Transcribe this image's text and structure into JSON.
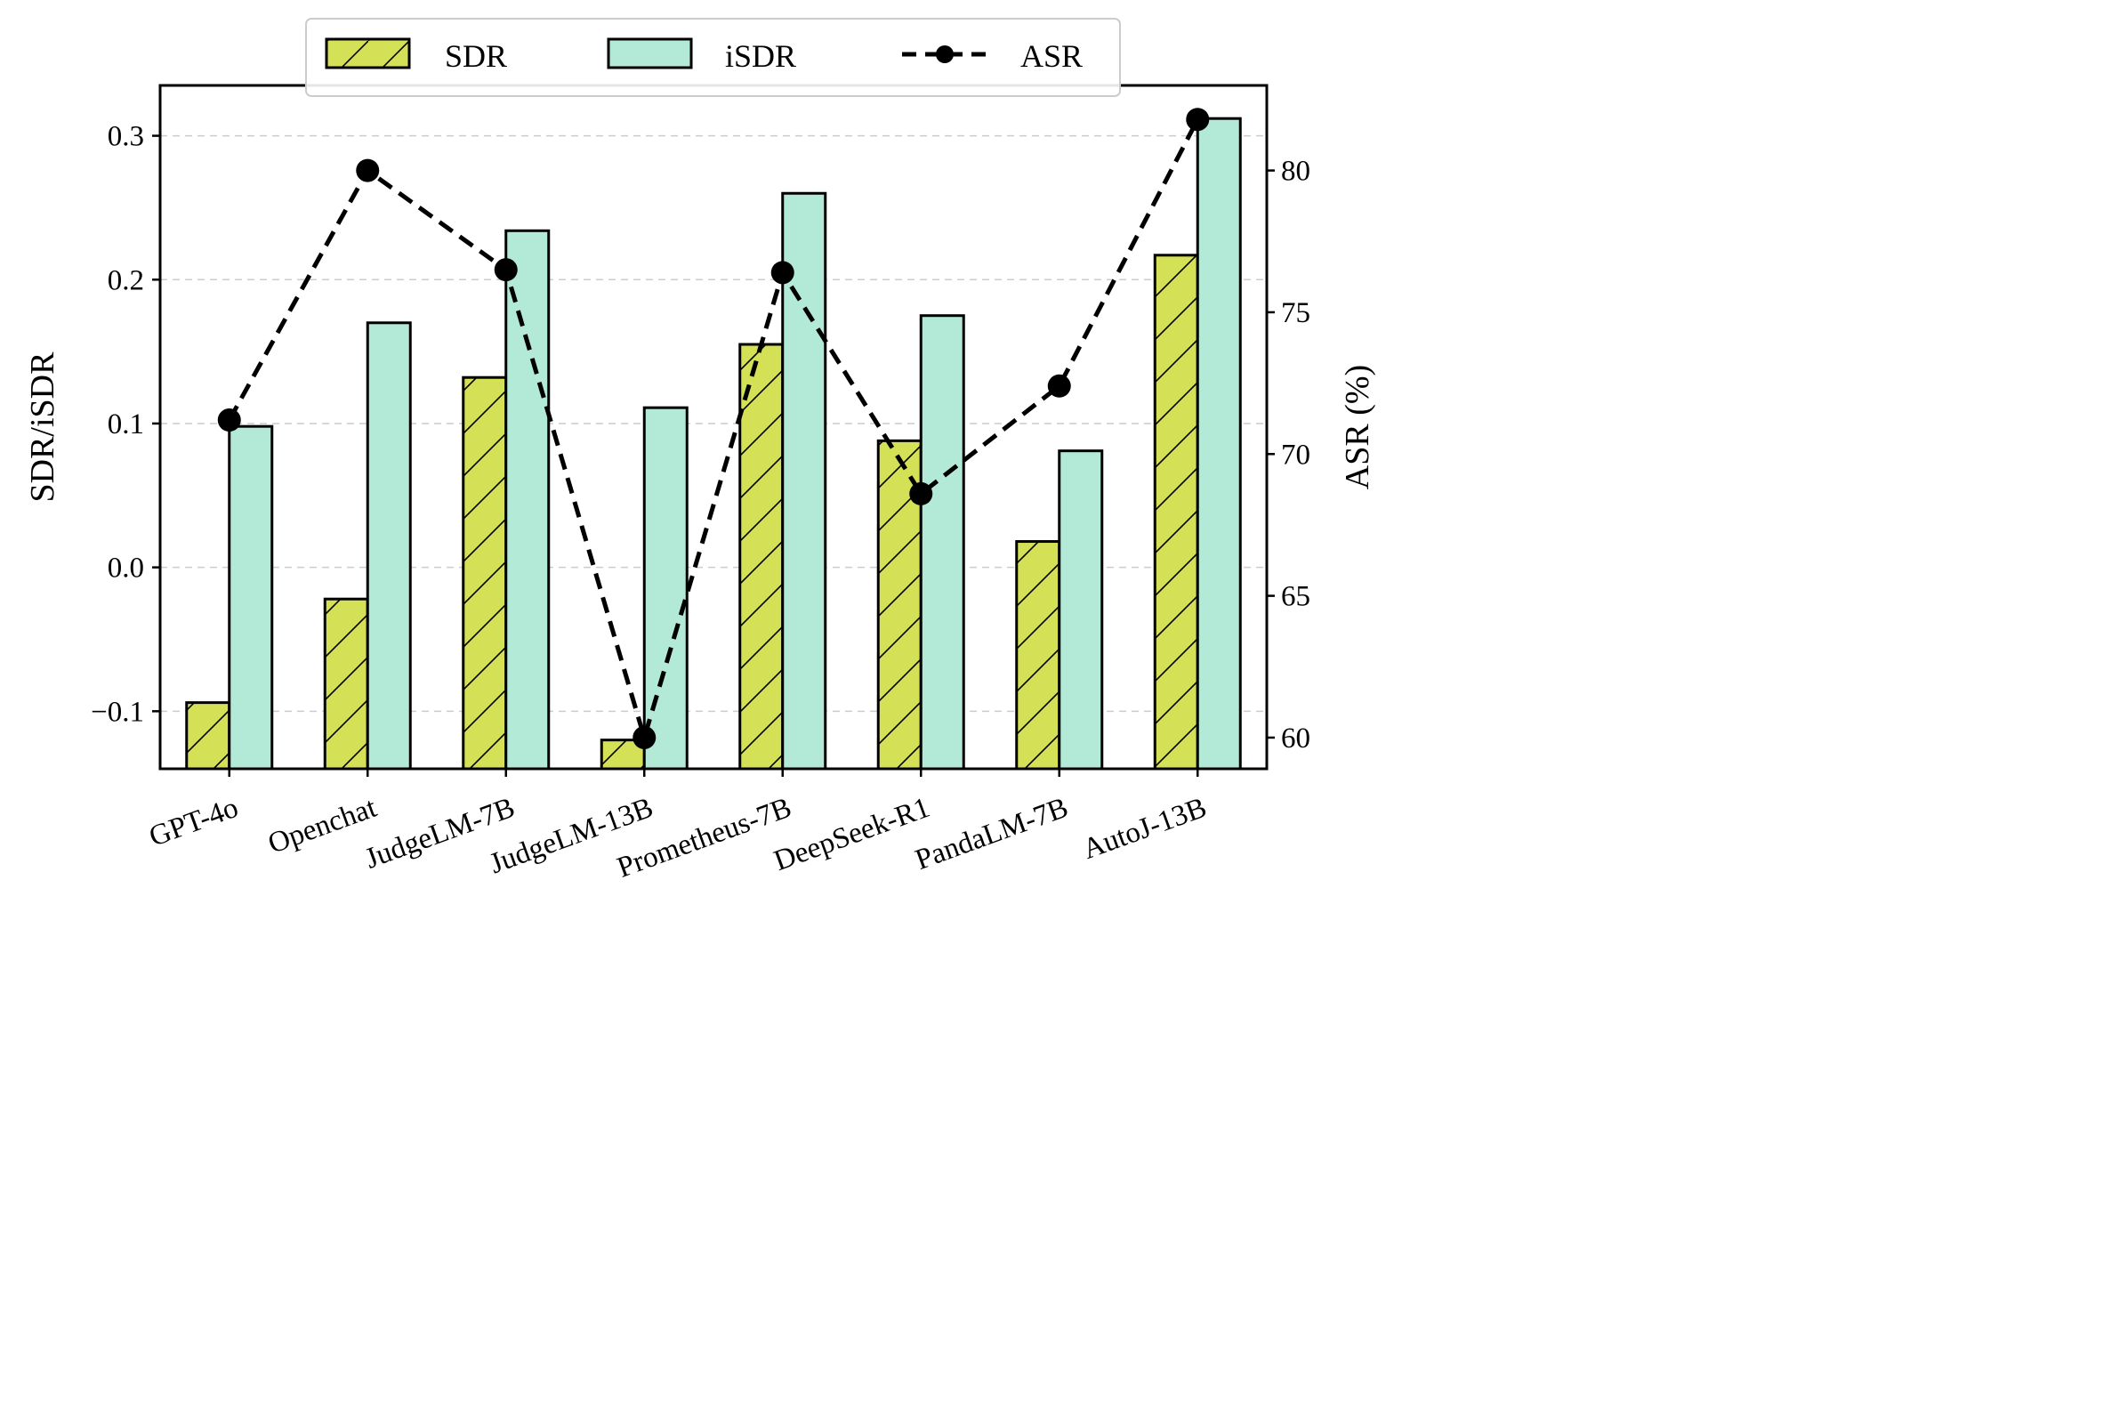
{
  "chart_data": {
    "type": "bar",
    "categories": [
      "GPT-4o",
      "Openchat",
      "JudgeLM-7B",
      "JudgeLM-13B",
      "Prometheus-7B",
      "DeepSeek-R1",
      "PandaLM-7B",
      "AutoJ-13B"
    ],
    "series": [
      {
        "name": "SDR",
        "type": "bar",
        "axis": "left",
        "color": "#d4e157",
        "hatch": "diagonal",
        "values": [
          -0.094,
          -0.022,
          0.132,
          -0.12,
          0.155,
          0.088,
          0.018,
          0.217
        ]
      },
      {
        "name": "iSDR",
        "type": "bar",
        "axis": "left",
        "color": "#b3ead7",
        "values": [
          0.098,
          0.17,
          0.234,
          0.111,
          0.26,
          0.175,
          0.081,
          0.312
        ]
      },
      {
        "name": "ASR",
        "type": "line",
        "axis": "right",
        "color": "#000000",
        "style": "dashed",
        "marker": "circle",
        "values": [
          71.2,
          80.0,
          76.5,
          60.0,
          76.4,
          68.6,
          72.4,
          81.8
        ]
      }
    ],
    "ylabel": "SDR/iSDR",
    "y2label": "ASR (%)",
    "ylim": [
      -0.14,
      0.335
    ],
    "y2lim": [
      58.9,
      83.0
    ],
    "yticks": [
      "−0.1",
      "0.0",
      "0.1",
      "0.2",
      "0.3"
    ],
    "yticks_values": [
      -0.1,
      0.0,
      0.1,
      0.2,
      0.3
    ],
    "y2ticks": [
      "60",
      "65",
      "70",
      "75",
      "80"
    ],
    "y2ticks_values": [
      60,
      65,
      70,
      75,
      80
    ],
    "grid": "horizontal dashed",
    "legend": {
      "placement": "top-center",
      "entries": [
        "SDR",
        "iSDR",
        "ASR"
      ]
    }
  }
}
